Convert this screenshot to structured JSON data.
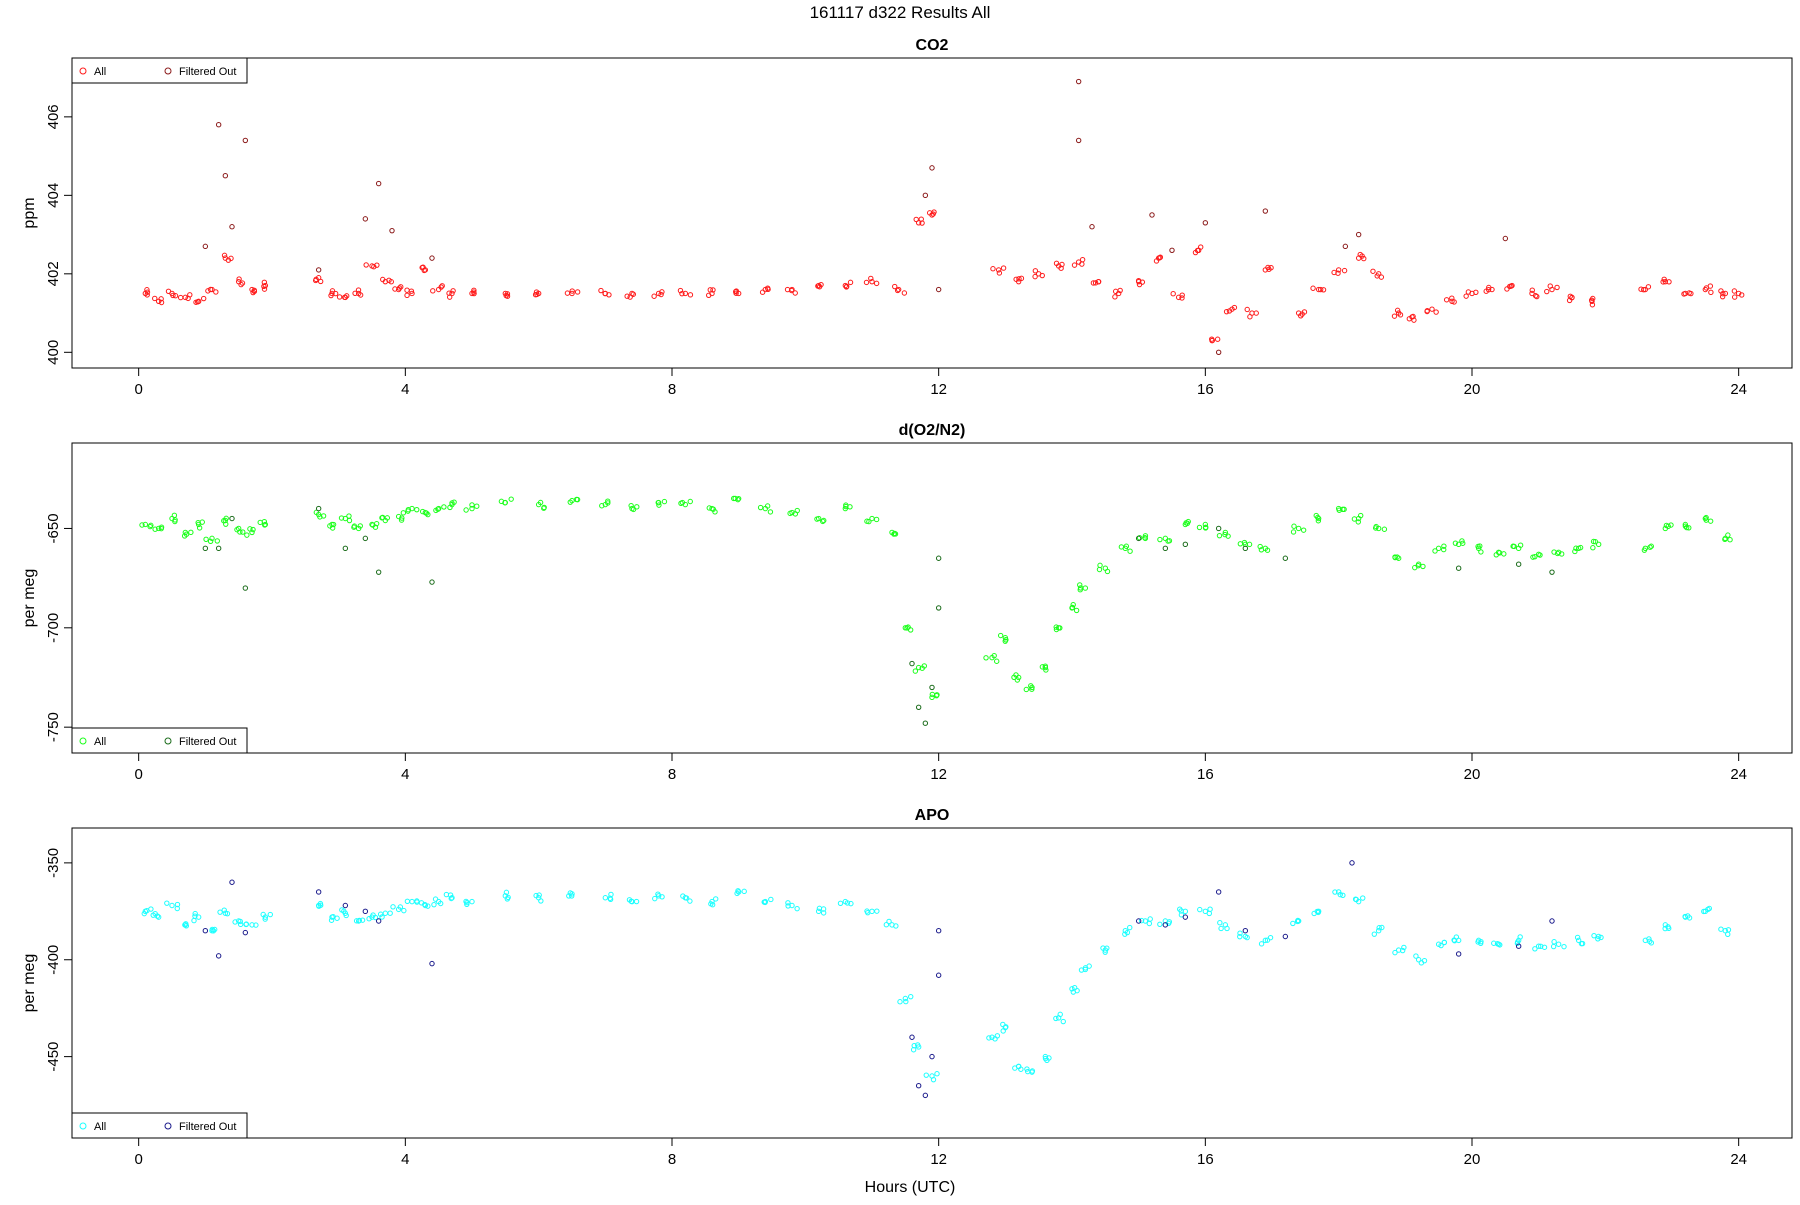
{
  "figure": {
    "title": "161117   d322   Results All",
    "xlabel": "Hours (UTC)"
  },
  "chart_data": [
    {
      "type": "scatter",
      "title": "CO2",
      "ylabel": "ppm",
      "xlim": [
        -1.0,
        24.8
      ],
      "ylim": [
        399.6,
        407.5
      ],
      "xticks": [
        0,
        4,
        8,
        12,
        16,
        20,
        24
      ],
      "yticks": [
        400,
        402,
        404,
        406
      ],
      "legend": {
        "placement": "top-left",
        "labels": [
          "All",
          "Filtered Out"
        ]
      },
      "colors": {
        "all": "#ff1a1a",
        "filtered": "#8b1a1a"
      },
      "series": [
        {
          "name": "All",
          "x": [
            0.1,
            0.3,
            0.5,
            0.7,
            0.9,
            1.1,
            1.3,
            1.5,
            1.7,
            1.9,
            2.7,
            2.9,
            3.1,
            3.3,
            3.5,
            3.7,
            3.9,
            4.1,
            4.3,
            4.5,
            4.7,
            5,
            5.5,
            6,
            6.5,
            7,
            7.4,
            7.8,
            8.2,
            8.6,
            9,
            9.4,
            9.8,
            10.2,
            10.6,
            11,
            11.4,
            11.7,
            11.9,
            12.9,
            13.2,
            13.5,
            13.8,
            14.1,
            14.4,
            14.7,
            15,
            15.3,
            15.6,
            15.9,
            16.1,
            16.4,
            16.7,
            16.9,
            17.4,
            17.7,
            18,
            18.3,
            18.6,
            18.9,
            19.1,
            19.4,
            19.7,
            20,
            20.3,
            20.6,
            20.9,
            21.2,
            21.5,
            21.8,
            22.6,
            22.9,
            23.2,
            23.5,
            23.8,
            24
          ],
          "y": [
            401.5,
            401.3,
            401.5,
            401.4,
            401.3,
            401.6,
            402.4,
            401.8,
            401.6,
            401.7,
            401.9,
            401.5,
            401.4,
            401.5,
            402.2,
            401.8,
            401.6,
            401.5,
            402.1,
            401.6,
            401.5,
            401.5,
            401.5,
            401.5,
            401.5,
            401.5,
            401.5,
            401.5,
            401.5,
            401.5,
            401.5,
            401.6,
            401.6,
            401.7,
            401.7,
            401.8,
            401.6,
            403.3,
            403.5,
            402.1,
            401.8,
            402.0,
            402.2,
            402.3,
            401.8,
            401.5,
            401.8,
            402.4,
            401.4,
            402.6,
            400.3,
            401.1,
            401.0,
            402.1,
            401.0,
            401.6,
            402.1,
            402.4,
            402.0,
            401.0,
            400.9,
            401.1,
            401.3,
            401.5,
            401.6,
            401.7,
            401.5,
            401.6,
            401.4,
            401.3,
            401.6,
            401.8,
            401.5,
            401.6,
            401.5,
            401.5
          ]
        },
        {
          "name": "Filtered Out",
          "x": [
            1.0,
            1.2,
            1.3,
            1.4,
            1.6,
            2.7,
            3.4,
            3.6,
            3.8,
            4.4,
            11.8,
            11.9,
            12.0,
            14.1,
            14.1,
            14.3,
            15.2,
            15.5,
            16.0,
            16.2,
            16.9,
            18.1,
            18.3,
            20.5
          ],
          "y": [
            402.7,
            405.8,
            404.5,
            403.2,
            405.4,
            402.1,
            403.4,
            404.3,
            403.1,
            402.4,
            404.0,
            404.7,
            401.6,
            406.9,
            405.4,
            403.2,
            403.5,
            402.6,
            403.3,
            400.0,
            403.6,
            402.7,
            403.0,
            402.9
          ]
        }
      ]
    },
    {
      "type": "scatter",
      "title": "d(O2/N2)",
      "ylabel": "per meg",
      "xlim": [
        -1.0,
        24.8
      ],
      "ylim": [
        -763,
        -607
      ],
      "xticks": [
        0,
        4,
        8,
        12,
        16,
        20,
        24
      ],
      "yticks": [
        -650,
        -700,
        -750
      ],
      "legend": {
        "placement": "bottom-left",
        "labels": [
          "All",
          "Filtered Out"
        ]
      },
      "colors": {
        "all": "#1aff1a",
        "filtered": "#1a6b1a"
      },
      "series": [
        {
          "name": "All",
          "x": [
            0.1,
            0.3,
            0.5,
            0.7,
            0.9,
            1.1,
            1.3,
            1.5,
            1.7,
            1.9,
            2.7,
            2.9,
            3.1,
            3.3,
            3.5,
            3.7,
            3.9,
            4.1,
            4.3,
            4.5,
            4.7,
            5,
            5.5,
            6,
            6.5,
            7,
            7.4,
            7.8,
            8.2,
            8.6,
            9,
            9.4,
            9.8,
            10.2,
            10.6,
            11,
            11.3,
            11.5,
            11.7,
            11.9,
            12.8,
            13,
            13.2,
            13.4,
            13.6,
            13.8,
            14,
            14.2,
            14.5,
            14.8,
            15.1,
            15.4,
            15.7,
            16,
            16.3,
            16.6,
            16.9,
            17.4,
            17.7,
            18,
            18.3,
            18.6,
            18.9,
            19.2,
            19.5,
            19.8,
            20.1,
            20.4,
            20.7,
            21,
            21.3,
            21.6,
            21.9,
            22.6,
            22.9,
            23.2,
            23.5,
            23.8
          ],
          "y": [
            -648,
            -650,
            -645,
            -652,
            -648,
            -655,
            -646,
            -650,
            -652,
            -648,
            -643,
            -648,
            -645,
            -650,
            -648,
            -646,
            -644,
            -640,
            -642,
            -640,
            -638,
            -640,
            -637,
            -638,
            -636,
            -638,
            -640,
            -637,
            -638,
            -640,
            -635,
            -640,
            -642,
            -645,
            -640,
            -645,
            -652,
            -700,
            -720,
            -735,
            -715,
            -705,
            -725,
            -730,
            -720,
            -700,
            -690,
            -680,
            -670,
            -660,
            -655,
            -655,
            -648,
            -648,
            -652,
            -658,
            -660,
            -650,
            -645,
            -640,
            -645,
            -650,
            -665,
            -668,
            -660,
            -658,
            -660,
            -662,
            -660,
            -663,
            -662,
            -660,
            -658,
            -660,
            -650,
            -648,
            -645,
            -655
          ]
        },
        {
          "name": "Filtered Out",
          "x": [
            1.0,
            1.2,
            1.4,
            1.6,
            2.7,
            3.1,
            3.4,
            3.6,
            4.4,
            11.6,
            11.7,
            11.8,
            11.9,
            12.0,
            12.0,
            15.0,
            15.4,
            15.7,
            16.2,
            16.6,
            17.2,
            19.8,
            20.7,
            21.2
          ],
          "y": [
            -660,
            -660,
            -645,
            -680,
            -640,
            -660,
            -655,
            -672,
            -677,
            -718,
            -740,
            -748,
            -730,
            -690,
            -665,
            -655,
            -660,
            -658,
            -650,
            -660,
            -665,
            -670,
            -668,
            -672
          ]
        }
      ]
    },
    {
      "type": "scatter",
      "title": "APO",
      "ylabel": "per meg",
      "xlim": [
        -1.0,
        24.8
      ],
      "ylim": [
        -492,
        -332
      ],
      "xticks": [
        0,
        4,
        8,
        12,
        16,
        20,
        24
      ],
      "yticks": [
        -350,
        -400,
        -450
      ],
      "legend": {
        "placement": "bottom-left",
        "labels": [
          "All",
          "Filtered Out"
        ]
      },
      "colors": {
        "all": "#1affff",
        "filtered": "#1a1a8b"
      },
      "series": [
        {
          "name": "All",
          "x": [
            0.1,
            0.3,
            0.5,
            0.7,
            0.9,
            1.1,
            1.3,
            1.5,
            1.7,
            1.9,
            2.7,
            2.9,
            3.1,
            3.3,
            3.5,
            3.7,
            3.9,
            4.1,
            4.3,
            4.5,
            4.7,
            5,
            5.5,
            6,
            6.5,
            7,
            7.4,
            7.8,
            8.2,
            8.6,
            9,
            9.4,
            9.8,
            10.2,
            10.6,
            11,
            11.3,
            11.5,
            11.7,
            11.9,
            12.8,
            13,
            13.2,
            13.4,
            13.6,
            13.8,
            14,
            14.2,
            14.5,
            14.8,
            15.1,
            15.4,
            15.7,
            16,
            16.3,
            16.6,
            16.9,
            17.4,
            17.7,
            18,
            18.3,
            18.6,
            18.9,
            19.2,
            19.5,
            19.8,
            20.1,
            20.4,
            20.7,
            21,
            21.3,
            21.6,
            21.9,
            22.6,
            22.9,
            23.2,
            23.5,
            23.8
          ],
          "y": [
            -375,
            -378,
            -372,
            -382,
            -378,
            -385,
            -376,
            -380,
            -382,
            -378,
            -372,
            -378,
            -376,
            -380,
            -378,
            -376,
            -374,
            -370,
            -372,
            -370,
            -368,
            -370,
            -367,
            -368,
            -366,
            -368,
            -370,
            -367,
            -368,
            -370,
            -365,
            -370,
            -372,
            -375,
            -370,
            -375,
            -382,
            -420,
            -445,
            -460,
            -440,
            -435,
            -455,
            -458,
            -450,
            -430,
            -415,
            -405,
            -395,
            -385,
            -380,
            -380,
            -375,
            -375,
            -382,
            -388,
            -390,
            -380,
            -375,
            -365,
            -370,
            -385,
            -395,
            -400,
            -392,
            -390,
            -390,
            -392,
            -390,
            -393,
            -392,
            -390,
            -388,
            -390,
            -382,
            -378,
            -375,
            -385
          ]
        },
        {
          "name": "Filtered Out",
          "x": [
            1.0,
            1.2,
            1.4,
            1.6,
            2.7,
            3.1,
            3.4,
            3.6,
            4.4,
            11.6,
            11.7,
            11.8,
            11.9,
            12.0,
            12.0,
            15.0,
            15.4,
            15.7,
            16.2,
            16.6,
            17.2,
            18.2,
            19.8,
            20.7,
            21.2
          ],
          "y": [
            -385,
            -398,
            -360,
            -386,
            -365,
            -372,
            -375,
            -380,
            -402,
            -440,
            -465,
            -470,
            -450,
            -408,
            -385,
            -380,
            -382,
            -378,
            -365,
            -385,
            -388,
            -350,
            -397,
            -393,
            -380
          ]
        }
      ]
    }
  ]
}
